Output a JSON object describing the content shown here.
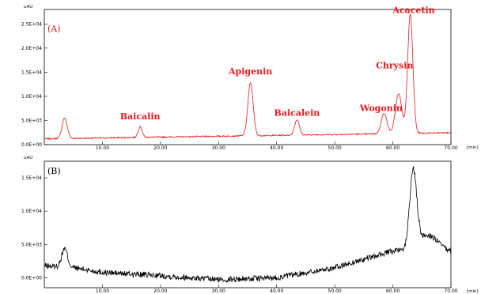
{
  "chart_data": [
    {
      "type": "line",
      "panel_label": "(A)",
      "y_unit_label": "uAU",
      "x_unit_label": "[min]",
      "xlim": [
        0,
        70
      ],
      "ylim": [
        0,
        28000
      ],
      "x_ticks": [
        "10.00",
        "20.00",
        "30.00",
        "40.00",
        "50.00",
        "60.00",
        "70.00"
      ],
      "y_ticks": [
        {
          "value": 0,
          "label": "0.0E+00"
        },
        {
          "value": 5000,
          "label": "5.0E+03"
        },
        {
          "value": 10000,
          "label": "1.0E+04"
        },
        {
          "value": 15000,
          "label": "1.5E+04"
        },
        {
          "value": 20000,
          "label": "2.0E+04"
        },
        {
          "value": 25000,
          "label": "2.5E+04"
        }
      ],
      "line_color": "#e4181c",
      "baseline": 1200,
      "peaks": [
        {
          "x": 3.5,
          "height": 4200,
          "width": 0.45
        },
        {
          "x": 16.5,
          "height": 2200,
          "width": 0.35
        },
        {
          "x": 35.5,
          "height": 11000,
          "width": 0.45
        },
        {
          "x": 43.5,
          "height": 3200,
          "width": 0.4
        },
        {
          "x": 58.5,
          "height": 4200,
          "width": 0.5
        },
        {
          "x": 61.0,
          "height": 8200,
          "width": 0.55
        },
        {
          "x": 63.0,
          "height": 24800,
          "width": 0.45
        }
      ],
      "annotations": [
        {
          "text": "Baicalin",
          "x": 16.5,
          "y": 5200
        },
        {
          "text": "Apigenin",
          "x": 35.5,
          "y": 14600
        },
        {
          "text": "Baicalein",
          "x": 43.5,
          "y": 6000
        },
        {
          "text": "Wogonin",
          "x": 58.0,
          "y": 7000
        },
        {
          "text": "Chrysin",
          "x": 60.3,
          "y": 15800
        },
        {
          "text": "Acacetin",
          "x": 63.6,
          "y": 27300
        }
      ]
    },
    {
      "type": "line",
      "panel_label": "(B)",
      "y_unit_label": "uAU",
      "x_unit_label": "[min]",
      "xlim": [
        0,
        70
      ],
      "ylim": [
        -1500,
        17500
      ],
      "x_ticks": [
        "10.00",
        "20.00",
        "30.00",
        "40.00",
        "50.00",
        "60.00",
        "70.00"
      ],
      "y_ticks": [
        {
          "value": 0,
          "label": "0.0E+00"
        },
        {
          "value": 5000,
          "label": "5.0E+03"
        },
        {
          "value": 10000,
          "label": "1.0E+04"
        },
        {
          "value": 15000,
          "label": "1.5E+04"
        }
      ],
      "line_color": "#000000",
      "baseline_points": [
        [
          0,
          1800
        ],
        [
          5,
          1500
        ],
        [
          10,
          800
        ],
        [
          20,
          300
        ],
        [
          30,
          -300
        ],
        [
          40,
          0
        ],
        [
          50,
          1500
        ],
        [
          60,
          4000
        ],
        [
          70,
          3800
        ]
      ],
      "peaks": [
        {
          "x": 3.5,
          "height": 2800,
          "width": 0.5
        },
        {
          "x": 63.5,
          "height": 11500,
          "width": 0.6
        },
        {
          "x": 66.0,
          "height": 2500,
          "width": 1.8
        }
      ]
    }
  ]
}
